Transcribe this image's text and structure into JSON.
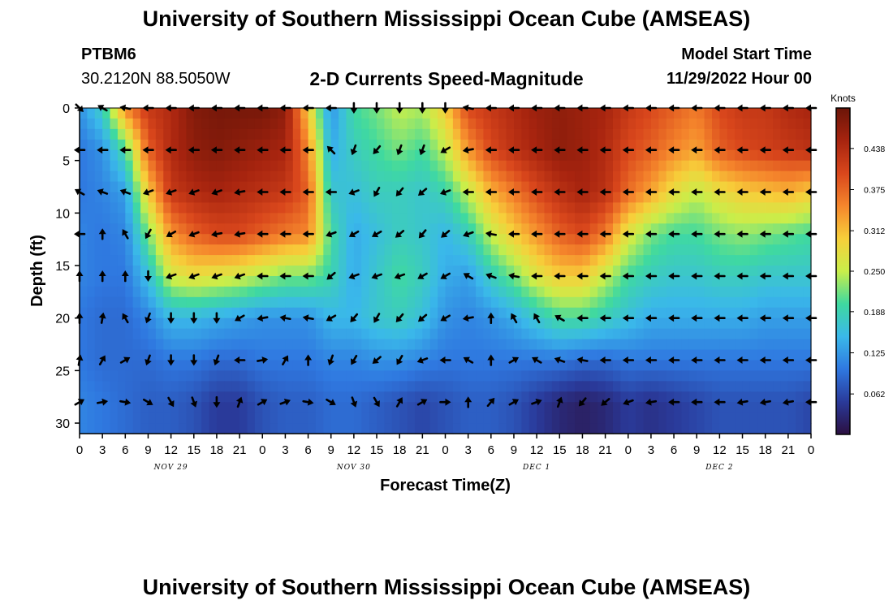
{
  "header": {
    "title": "University of Southern Mississippi Ocean Cube (AMSEAS)",
    "station_id": "PTBM6",
    "coordinates": "30.2120N  88.5050W",
    "chart_title": "2-D Currents Speed-Magnitude",
    "model_start_label": "Model Start Time",
    "model_start_value": "11/29/2022 Hour 00"
  },
  "footer": {
    "title": "University of Southern Mississippi Ocean Cube (AMSEAS)"
  },
  "chart_data": {
    "type": "heatmap",
    "title": "2-D Currents Speed-Magnitude",
    "xlabel": "Forecast Time(Z)",
    "ylabel": "Depth (ft)",
    "xlim": [
      0,
      96
    ],
    "ylim": [
      31,
      0
    ],
    "x_ticks": [
      0,
      3,
      6,
      9,
      12,
      15,
      18,
      21,
      24,
      27,
      30,
      33,
      36,
      39,
      42,
      45,
      48,
      51,
      54,
      57,
      60,
      63,
      66,
      69,
      72,
      75,
      78,
      81,
      84,
      87,
      90,
      93,
      96
    ],
    "x_tick_labels": [
      "0",
      "3",
      "6",
      "9",
      "12",
      "15",
      "18",
      "21",
      "0",
      "3",
      "6",
      "9",
      "12",
      "15",
      "18",
      "21",
      "0",
      "3",
      "6",
      "9",
      "12",
      "15",
      "18",
      "21",
      "0",
      "3",
      "6",
      "9",
      "12",
      "15",
      "18",
      "21",
      "0"
    ],
    "y_ticks": [
      0,
      5,
      10,
      15,
      20,
      25,
      30
    ],
    "date_labels": [
      {
        "x": 12,
        "label": "NOV 29"
      },
      {
        "x": 36,
        "label": "NOV 30"
      },
      {
        "x": 60,
        "label": "DEC 1"
      },
      {
        "x": 84,
        "label": "DEC 2"
      }
    ],
    "colorbar": {
      "units": "Knots",
      "min": 0,
      "max": 0.5,
      "ticks": [
        0.438,
        0.375,
        0.312,
        0.25,
        0.188,
        0.125,
        0.062
      ]
    },
    "depths_ft": [
      0,
      4,
      8,
      12,
      16,
      20,
      24,
      28
    ],
    "arrow_times_h": [
      0,
      3,
      6,
      9,
      12,
      15,
      18,
      21,
      24,
      27,
      30,
      33,
      36,
      39,
      42,
      45,
      48,
      51,
      54,
      57,
      60,
      63,
      66,
      69,
      72,
      75,
      78,
      81,
      84,
      87,
      90,
      93,
      96
    ],
    "speed_knots": [
      [
        0.12,
        0.18,
        0.35,
        0.42,
        0.44,
        0.48,
        0.49,
        0.49,
        0.49,
        0.47,
        0.3,
        0.12,
        0.2,
        0.22,
        0.25,
        0.24,
        0.3,
        0.4,
        0.42,
        0.44,
        0.46,
        0.47,
        0.46,
        0.45,
        0.42,
        0.4,
        0.38,
        0.36,
        0.4,
        0.42,
        0.42,
        0.44,
        0.45
      ],
      [
        0.1,
        0.12,
        0.2,
        0.38,
        0.44,
        0.47,
        0.48,
        0.47,
        0.46,
        0.45,
        0.35,
        0.14,
        0.18,
        0.2,
        0.22,
        0.2,
        0.25,
        0.34,
        0.4,
        0.43,
        0.45,
        0.47,
        0.46,
        0.44,
        0.4,
        0.38,
        0.35,
        0.33,
        0.38,
        0.4,
        0.41,
        0.42,
        0.43
      ],
      [
        0.1,
        0.11,
        0.13,
        0.3,
        0.42,
        0.44,
        0.45,
        0.44,
        0.43,
        0.42,
        0.38,
        0.17,
        0.16,
        0.18,
        0.18,
        0.17,
        0.19,
        0.25,
        0.32,
        0.36,
        0.4,
        0.43,
        0.45,
        0.43,
        0.37,
        0.33,
        0.28,
        0.25,
        0.28,
        0.3,
        0.31,
        0.32,
        0.3
      ],
      [
        0.11,
        0.1,
        0.11,
        0.22,
        0.34,
        0.38,
        0.4,
        0.4,
        0.38,
        0.36,
        0.35,
        0.2,
        0.14,
        0.16,
        0.18,
        0.17,
        0.15,
        0.18,
        0.25,
        0.3,
        0.34,
        0.38,
        0.4,
        0.36,
        0.27,
        0.22,
        0.2,
        0.2,
        0.22,
        0.23,
        0.22,
        0.21,
        0.2
      ],
      [
        0.11,
        0.1,
        0.1,
        0.16,
        0.26,
        0.28,
        0.27,
        0.26,
        0.24,
        0.22,
        0.22,
        0.19,
        0.14,
        0.17,
        0.2,
        0.18,
        0.14,
        0.13,
        0.18,
        0.22,
        0.27,
        0.3,
        0.3,
        0.25,
        0.2,
        0.18,
        0.17,
        0.17,
        0.18,
        0.18,
        0.17,
        0.17,
        0.17
      ],
      [
        0.1,
        0.09,
        0.09,
        0.11,
        0.15,
        0.15,
        0.14,
        0.13,
        0.12,
        0.12,
        0.12,
        0.15,
        0.15,
        0.17,
        0.18,
        0.16,
        0.12,
        0.11,
        0.12,
        0.14,
        0.17,
        0.2,
        0.2,
        0.18,
        0.16,
        0.14,
        0.14,
        0.14,
        0.14,
        0.14,
        0.13,
        0.13,
        0.13
      ],
      [
        0.1,
        0.09,
        0.09,
        0.09,
        0.1,
        0.1,
        0.09,
        0.09,
        0.1,
        0.1,
        0.1,
        0.11,
        0.11,
        0.12,
        0.12,
        0.11,
        0.1,
        0.1,
        0.1,
        0.1,
        0.1,
        0.1,
        0.09,
        0.09,
        0.1,
        0.1,
        0.1,
        0.1,
        0.1,
        0.1,
        0.1,
        0.1,
        0.1
      ],
      [
        0.11,
        0.1,
        0.09,
        0.08,
        0.08,
        0.07,
        0.05,
        0.05,
        0.07,
        0.08,
        0.08,
        0.09,
        0.09,
        0.08,
        0.07,
        0.06,
        0.07,
        0.08,
        0.08,
        0.07,
        0.05,
        0.03,
        0.02,
        0.03,
        0.05,
        0.04,
        0.05,
        0.06,
        0.07,
        0.07,
        0.07,
        0.07,
        0.06
      ]
    ],
    "direction_deg_compass": [
      [
        135,
        300,
        280,
        270,
        270,
        270,
        270,
        270,
        270,
        270,
        270,
        270,
        180,
        180,
        180,
        180,
        180,
        280,
        270,
        270,
        270,
        270,
        270,
        270,
        270,
        270,
        270,
        270,
        270,
        270,
        270,
        270,
        270
      ],
      [
        270,
        270,
        270,
        270,
        270,
        270,
        270,
        270,
        270,
        270,
        270,
        315,
        200,
        220,
        200,
        200,
        240,
        260,
        270,
        270,
        270,
        270,
        270,
        270,
        270,
        270,
        270,
        270,
        270,
        270,
        270,
        270,
        270
      ],
      [
        300,
        290,
        290,
        250,
        250,
        250,
        250,
        260,
        270,
        270,
        270,
        270,
        250,
        210,
        220,
        230,
        250,
        270,
        270,
        270,
        270,
        270,
        270,
        270,
        270,
        270,
        270,
        270,
        270,
        270,
        270,
        270,
        270
      ],
      [
        270,
        0,
        330,
        210,
        240,
        250,
        260,
        260,
        270,
        270,
        270,
        250,
        240,
        240,
        230,
        220,
        230,
        250,
        280,
        270,
        270,
        270,
        270,
        270,
        270,
        270,
        270,
        270,
        270,
        270,
        270,
        270,
        270
      ],
      [
        0,
        0,
        0,
        180,
        250,
        250,
        250,
        250,
        270,
        270,
        270,
        230,
        250,
        250,
        250,
        240,
        240,
        300,
        290,
        280,
        270,
        270,
        270,
        270,
        270,
        270,
        270,
        270,
        270,
        270,
        270,
        270,
        270
      ],
      [
        0,
        10,
        330,
        200,
        180,
        180,
        180,
        240,
        260,
        280,
        280,
        240,
        220,
        210,
        220,
        230,
        240,
        260,
        0,
        330,
        330,
        300,
        270,
        270,
        270,
        270,
        270,
        270,
        270,
        270,
        270,
        270,
        270
      ],
      [
        10,
        30,
        60,
        200,
        180,
        180,
        200,
        270,
        80,
        30,
        0,
        200,
        210,
        230,
        210,
        250,
        270,
        300,
        0,
        60,
        300,
        290,
        280,
        270,
        270,
        270,
        270,
        270,
        270,
        270,
        270,
        270,
        270
      ],
      [
        60,
        80,
        100,
        120,
        150,
        160,
        180,
        20,
        60,
        70,
        100,
        120,
        160,
        150,
        30,
        60,
        90,
        0,
        40,
        60,
        70,
        20,
        220,
        230,
        250,
        260,
        270,
        270,
        270,
        260,
        260,
        260,
        270
      ]
    ]
  }
}
